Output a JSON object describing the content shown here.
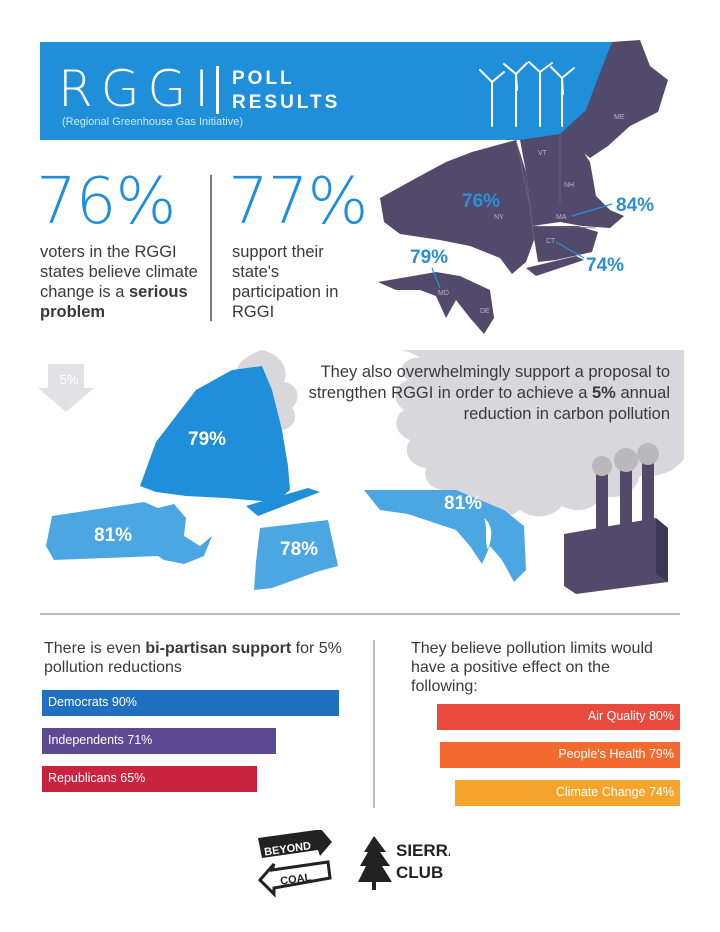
{
  "header": {
    "title_main": "RGGI",
    "title_poll": "POLL",
    "title_results": "RESULTS",
    "subtitle": "(Regional Greenhouse Gas Initiative)"
  },
  "stats": [
    {
      "value": "76%",
      "text_before": "voters in the RGGI states believe climate change is a ",
      "text_bold": "serious problem"
    },
    {
      "value": "77%",
      "text": "support their state's participation in RGGI"
    }
  ],
  "regional_map": {
    "labels": {
      "ny": "76%",
      "ma": "84%",
      "md": "79%",
      "ct": "74%"
    },
    "abbreviations": {
      "me": "ME",
      "vt": "VT",
      "nh": "NH",
      "ny": "NY",
      "ma": "MA",
      "ct": "CT",
      "md": "MD",
      "de": "DE"
    }
  },
  "strengthen": {
    "arrow_label": "5%",
    "text_before": "They also overwhelmingly support a proposal to strengthen RGGI in order to achieve a ",
    "text_bold": "5%",
    "text_after": " annual reduction in carbon pollution",
    "states": {
      "ny": "79%",
      "ma": "81%",
      "ct": "78%",
      "md": "81%"
    }
  },
  "colors": {
    "blue": "#1e8fd8",
    "light_blue": "#4ba6e1",
    "map_purple": "#514a6b",
    "cloud_gray": "#d8d8dc",
    "democrats": "#1f70bf",
    "independents": "#5d4a94",
    "republicans": "#c9243f",
    "air_quality": "#ea4a3c",
    "peoples_health": "#f26a2f",
    "climate_change": "#f5a52b"
  },
  "chart_data": [
    {
      "type": "bar",
      "title": "There is even bi-partisan support for 5% pollution reductions",
      "title_before": "There is even ",
      "title_bold": "bi-partisan support",
      "title_after": " for 5% pollution reductions",
      "categories": [
        "Democrats",
        "Independents",
        "Republicans"
      ],
      "values": [
        90,
        71,
        65
      ],
      "labels": [
        "Democrats 90%",
        "Independents 71%",
        "Republicans 65%"
      ],
      "orientation": "horizontal",
      "xlim": [
        0,
        100
      ]
    },
    {
      "type": "bar",
      "title": "They believe pollution limits would have a positive effect on the following:",
      "categories": [
        "Air Quality",
        "People's Health",
        "Climate Change"
      ],
      "values": [
        80,
        79,
        74
      ],
      "labels": [
        "Air Quality 80%",
        "People's Health 79%",
        "Climate Change 74%"
      ],
      "orientation": "horizontal",
      "xlim": [
        0,
        100
      ]
    }
  ],
  "logos": {
    "beyond_line1": "BEYOND",
    "beyond_line2": "COAL",
    "sierra_line1": "SIERRA",
    "sierra_line2": "CLUB"
  }
}
